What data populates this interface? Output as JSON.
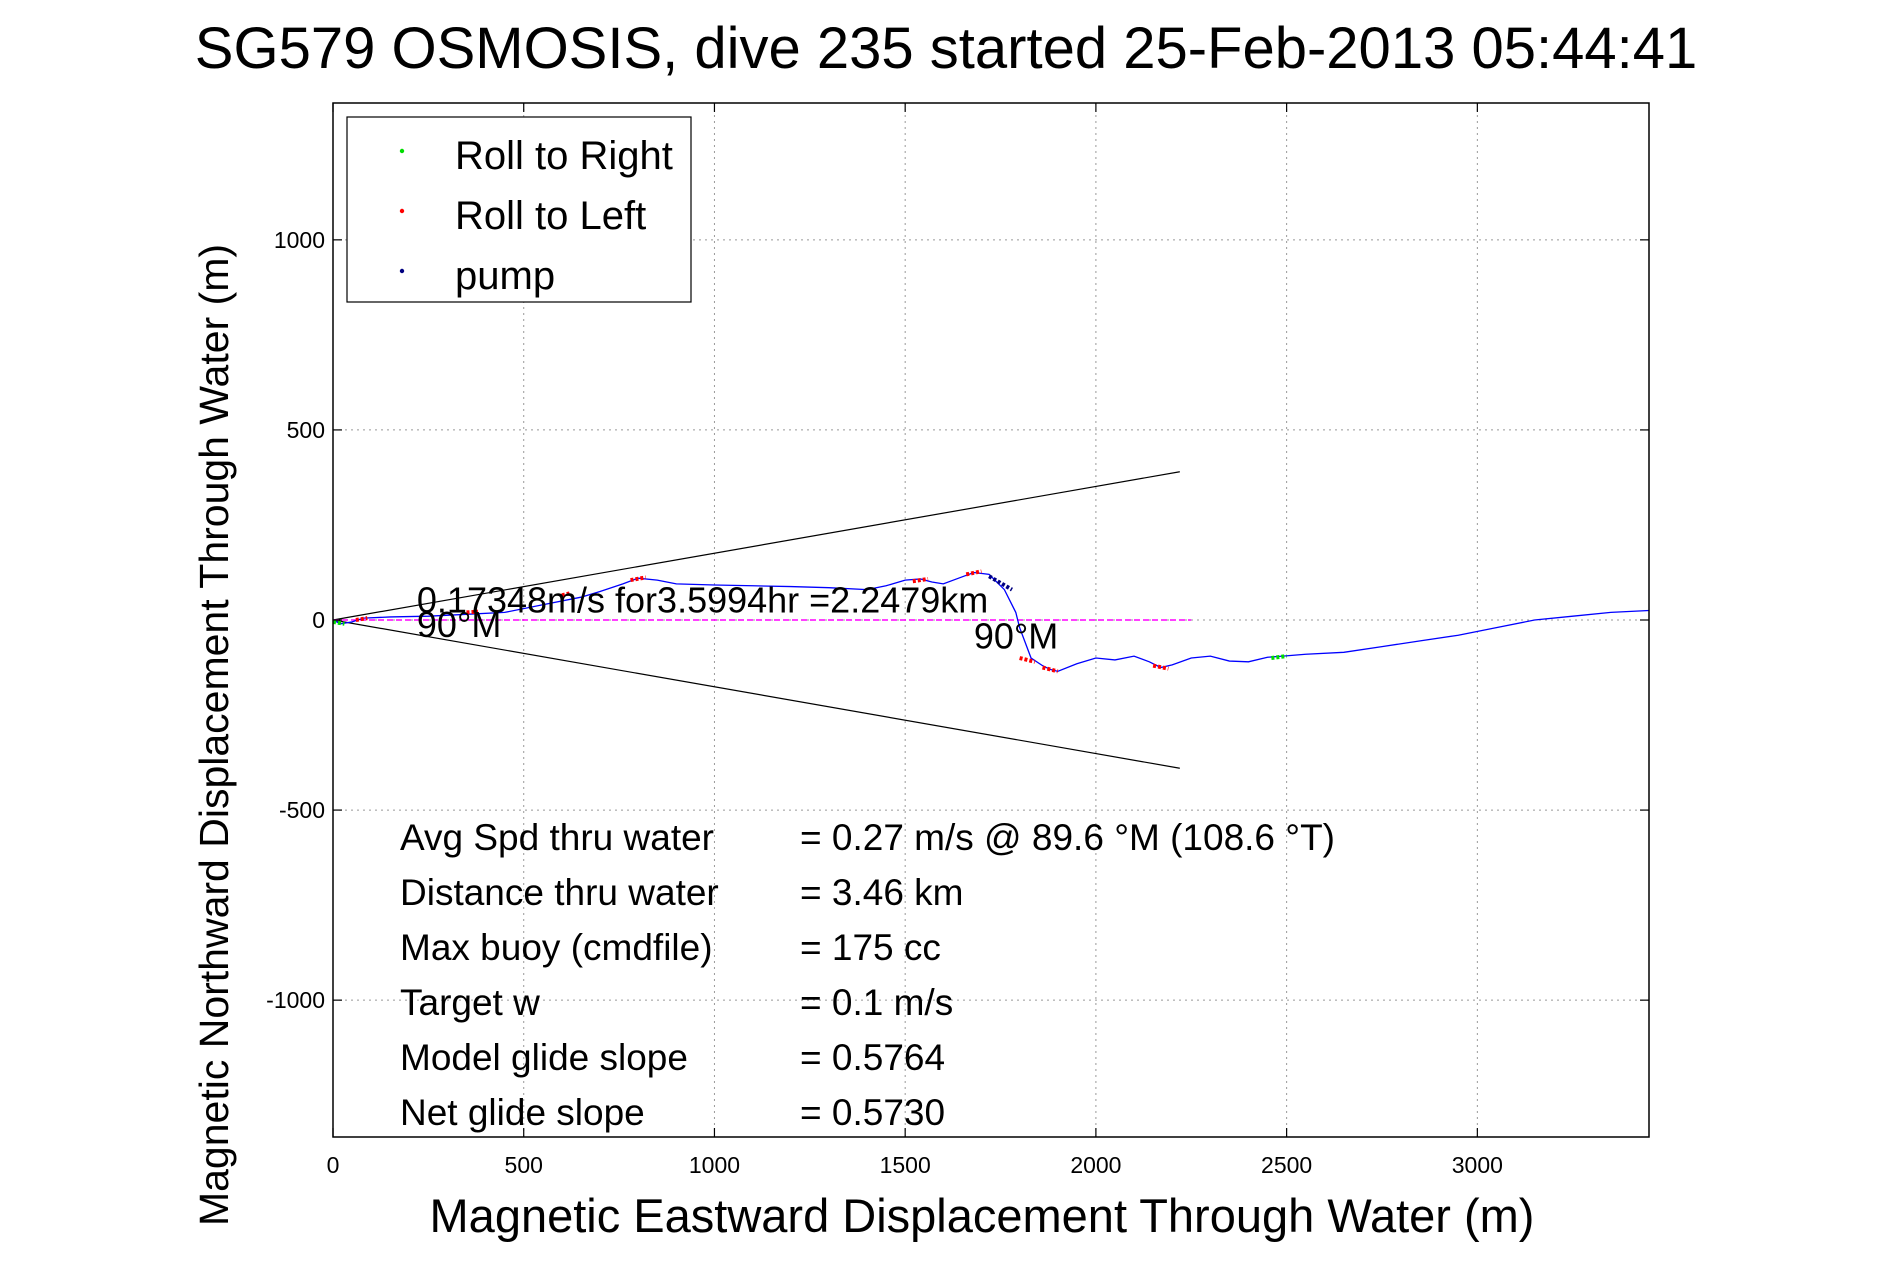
{
  "chart_data": {
    "type": "line",
    "title": "SG579 OSMOSIS, dive 235 started 25-Feb-2013 05:44:41",
    "xlabel": "Magnetic Eastward Displacement Through Water (m)",
    "ylabel": "Magnetic Northward Displacement Through Water (m)",
    "xlim": [
      0,
      3450
    ],
    "ylim": [
      -1360,
      1360
    ],
    "xticks": [
      0,
      500,
      1000,
      1500,
      2000,
      2500,
      3000
    ],
    "yticks": [
      -1000,
      -500,
      0,
      500,
      1000
    ],
    "xtick_labels": [
      "0",
      "500",
      "1000",
      "1500",
      "2000",
      "2500",
      "3000"
    ],
    "ytick_labels": [
      "-1000",
      "-500",
      "0",
      "500",
      "1000"
    ],
    "grid": true,
    "legend": {
      "position": "top-left",
      "entries": [
        {
          "label": "Roll to Right",
          "color": "#00dd00"
        },
        {
          "label": "Roll to Left",
          "color": "#ff0000"
        },
        {
          "label": "pump",
          "color": "#000080"
        }
      ]
    },
    "series": [],
    "track": {
      "color": "#0000ff",
      "x": [
        0,
        20,
        50,
        80,
        150,
        250,
        350,
        450,
        550,
        650,
        700,
        760,
        800,
        850,
        900,
        1000,
        1100,
        1200,
        1300,
        1400,
        1450,
        1500,
        1540,
        1570,
        1600,
        1640,
        1680,
        1720,
        1760,
        1790,
        1800,
        1830,
        1860,
        1880,
        1900,
        1950,
        2000,
        2050,
        2100,
        2140,
        2170,
        2200,
        2250,
        2300,
        2350,
        2400,
        2450,
        2490,
        2550,
        2650,
        2750,
        2850,
        2950,
        3050,
        3150,
        3250,
        3350,
        3450
      ],
      "y": [
        0,
        -10,
        -5,
        5,
        8,
        10,
        15,
        20,
        40,
        60,
        75,
        95,
        110,
        105,
        95,
        92,
        90,
        88,
        85,
        80,
        90,
        105,
        108,
        100,
        95,
        110,
        125,
        120,
        80,
        20,
        -20,
        -100,
        -120,
        -130,
        -135,
        -115,
        -100,
        -105,
        -95,
        -110,
        -125,
        -118,
        -100,
        -95,
        -108,
        -110,
        -98,
        -95,
        -90,
        -85,
        -70,
        -55,
        -40,
        -20,
        0,
        10,
        20,
        25
      ]
    },
    "roll_right_segments": [
      {
        "x": [
          0,
          30
        ],
        "y": [
          -5,
          -10
        ]
      },
      {
        "x": [
          2460,
          2500
        ],
        "y": [
          -100,
          -95
        ]
      }
    ],
    "roll_left_segments": [
      {
        "x": [
          60,
          90
        ],
        "y": [
          0,
          5
        ]
      },
      {
        "x": [
          350,
          380
        ],
        "y": [
          20,
          22
        ]
      },
      {
        "x": [
          600,
          620
        ],
        "y": [
          65,
          70
        ]
      },
      {
        "x": [
          780,
          820
        ],
        "y": [
          105,
          112
        ]
      },
      {
        "x": [
          1520,
          1560
        ],
        "y": [
          102,
          108
        ]
      },
      {
        "x": [
          1660,
          1700
        ],
        "y": [
          120,
          128
        ]
      },
      {
        "x": [
          1800,
          1840
        ],
        "y": [
          -100,
          -110
        ]
      },
      {
        "x": [
          1860,
          1900
        ],
        "y": [
          -125,
          -135
        ]
      },
      {
        "x": [
          2150,
          2190
        ],
        "y": [
          -120,
          -128
        ]
      }
    ],
    "pump_segments": [
      {
        "x": [
          1720,
          1780
        ],
        "y": [
          115,
          80
        ]
      }
    ],
    "heading_line": {
      "color": "#ff00ff",
      "x": [
        0,
        2250
      ],
      "y": [
        0,
        0
      ]
    },
    "cone_lines": [
      {
        "x": [
          0,
          2220
        ],
        "y": [
          0,
          390
        ]
      },
      {
        "x": [
          0,
          2220
        ],
        "y": [
          0,
          -390
        ]
      }
    ],
    "annotations": [
      {
        "text": "0.17348m/s for3.5994hr =2.2479km",
        "x": 220,
        "y": 20
      },
      {
        "text": "90°M",
        "x": 220,
        "y": -45
      },
      {
        "text": "90°M",
        "x": 1680,
        "y": -75
      }
    ],
    "stats": [
      {
        "label": "Avg Spd thru water",
        "value": "=  0.27 m/s @  89.6 °M (108.6 °T)"
      },
      {
        "label": "Distance thru water",
        "value": "=  3.46 km"
      },
      {
        "label": "Max buoy (cmdfile)",
        "value": "= 175 cc"
      },
      {
        "label": "Target w",
        "value": "= 0.1 m/s"
      },
      {
        "label": "Model glide slope",
        "value": "= 0.5764"
      },
      {
        "label": "Net glide slope",
        "value": "= 0.5730"
      }
    ]
  }
}
